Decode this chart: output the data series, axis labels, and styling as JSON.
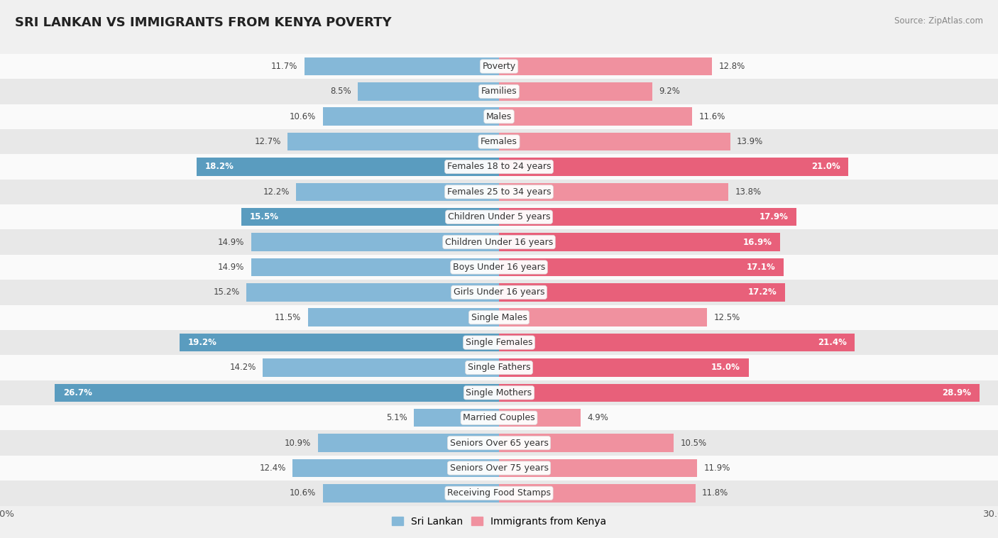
{
  "title": "SRI LANKAN VS IMMIGRANTS FROM KENYA POVERTY",
  "source": "Source: ZipAtlas.com",
  "categories": [
    "Poverty",
    "Families",
    "Males",
    "Females",
    "Females 18 to 24 years",
    "Females 25 to 34 years",
    "Children Under 5 years",
    "Children Under 16 years",
    "Boys Under 16 years",
    "Girls Under 16 years",
    "Single Males",
    "Single Females",
    "Single Fathers",
    "Single Mothers",
    "Married Couples",
    "Seniors Over 65 years",
    "Seniors Over 75 years",
    "Receiving Food Stamps"
  ],
  "sri_lankan": [
    11.7,
    8.5,
    10.6,
    12.7,
    18.2,
    12.2,
    15.5,
    14.9,
    14.9,
    15.2,
    11.5,
    19.2,
    14.2,
    26.7,
    5.1,
    10.9,
    12.4,
    10.6
  ],
  "kenya": [
    12.8,
    9.2,
    11.6,
    13.9,
    21.0,
    13.8,
    17.9,
    16.9,
    17.1,
    17.2,
    12.5,
    21.4,
    15.0,
    28.9,
    4.9,
    10.5,
    11.9,
    11.8
  ],
  "sri_lankan_color": "#85b8d8",
  "kenya_color": "#f0919f",
  "sri_lankan_highlight_color": "#5a9cbf",
  "kenya_highlight_color": "#e8607a",
  "bar_height": 0.72,
  "max_val": 30.0,
  "bg_color": "#f0f0f0",
  "row_color_even": "#fafafa",
  "row_color_odd": "#e8e8e8",
  "label_fontsize": 9.0,
  "value_fontsize": 8.5,
  "title_fontsize": 13,
  "sl_white_threshold": 15.5,
  "ke_white_threshold": 15.0,
  "legend_sri_lankan": "Sri Lankan",
  "legend_kenya": "Immigrants from Kenya"
}
